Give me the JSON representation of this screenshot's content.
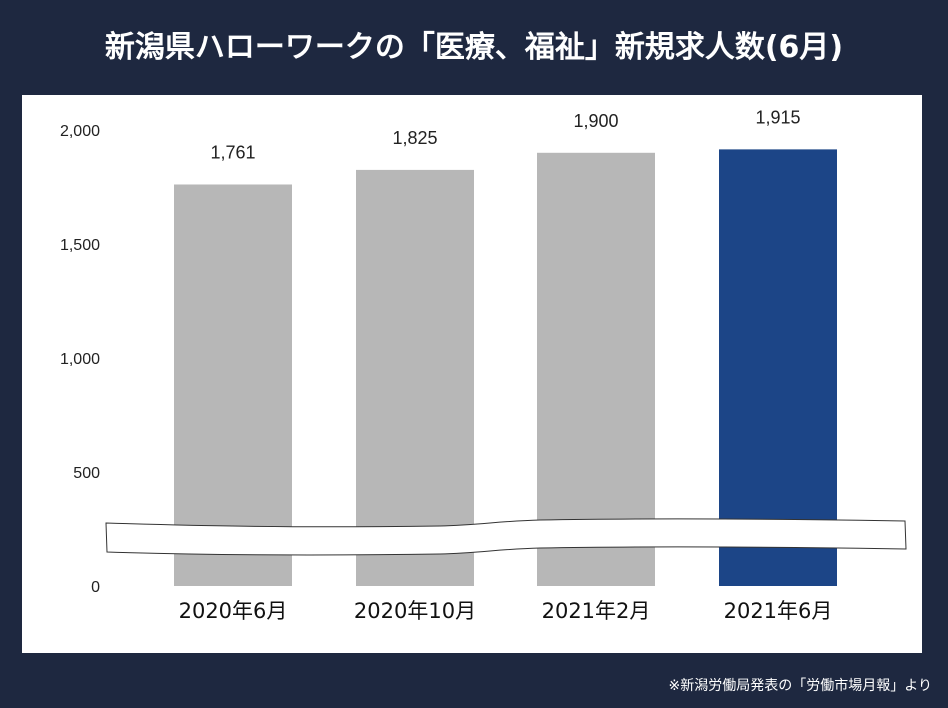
{
  "title": "新潟県ハローワークの「医療、福祉」新規求人数(6月)",
  "note": "※新潟労働局発表の「労働市場月報」より",
  "colors": {
    "background": "#1e2840",
    "bar_default": "#b7b7b7",
    "bar_highlight": "#1c4587"
  },
  "chart_data": {
    "type": "bar",
    "title": "新潟県ハローワークの「医療、福祉」新規求人数(6月)",
    "categories": [
      "2020年6月",
      "2020年10月",
      "2021年2月",
      "2021年6月"
    ],
    "values": [
      1761,
      1825,
      1900,
      1915
    ],
    "data_labels": [
      "1,761",
      "1,825",
      "1,900",
      "1,915"
    ],
    "highlight_index": 3,
    "ylim": [
      0,
      2000
    ],
    "yticks": [
      0,
      500,
      1000,
      1500,
      2000
    ],
    "ytick_labels": [
      "0",
      "500",
      "1,000",
      "1,500",
      "2,000"
    ],
    "axis_break": true,
    "grid": false,
    "xlabel": "",
    "ylabel": ""
  }
}
